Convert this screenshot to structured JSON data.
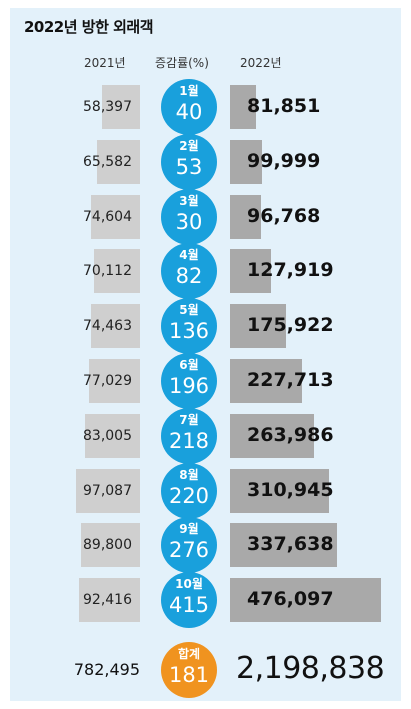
{
  "title": "2022년 방한 외래객",
  "headers": {
    "y2021": "2021년",
    "rate": "증감률(%)",
    "y2022": "2022년"
  },
  "chart_data": {
    "type": "table",
    "title": "2022년 방한 외래객",
    "columns": [
      "2021년",
      "증감률(%)",
      "2022년"
    ],
    "rows": [
      {
        "month": "1월",
        "v2021": "58,397",
        "rate": "40",
        "v2022": "81,851",
        "n2021": 58397,
        "n2022": 81851
      },
      {
        "month": "2월",
        "v2021": "65,582",
        "rate": "53",
        "v2022": "99,999",
        "n2021": 65582,
        "n2022": 99999
      },
      {
        "month": "3월",
        "v2021": "74,604",
        "rate": "30",
        "v2022": "96,768",
        "n2021": 74604,
        "n2022": 96768
      },
      {
        "month": "4월",
        "v2021": "70,112",
        "rate": "82",
        "v2022": "127,919",
        "n2021": 70112,
        "n2022": 127919
      },
      {
        "month": "5월",
        "v2021": "74,463",
        "rate": "136",
        "v2022": "175,922",
        "n2021": 74463,
        "n2022": 175922
      },
      {
        "month": "6월",
        "v2021": "77,029",
        "rate": "196",
        "v2022": "227,713",
        "n2021": 77029,
        "n2022": 227713
      },
      {
        "month": "7월",
        "v2021": "83,005",
        "rate": "218",
        "v2022": "263,986",
        "n2021": 83005,
        "n2022": 263986
      },
      {
        "month": "8월",
        "v2021": "97,087",
        "rate": "220",
        "v2022": "310,945",
        "n2021": 97087,
        "n2022": 310945
      },
      {
        "month": "9월",
        "v2021": "89,800",
        "rate": "276",
        "v2022": "337,638",
        "n2021": 89800,
        "n2022": 337638
      },
      {
        "month": "10월",
        "v2021": "92,416",
        "rate": "415",
        "v2022": "476,097",
        "n2021": 92416,
        "n2022": 476097
      }
    ],
    "total": {
      "label": "합계",
      "v2021": "782,495",
      "rate": "181",
      "v2022": "2,198,838"
    }
  },
  "colors": {
    "panel": "#e3f1fa",
    "circle": "#19a0dc",
    "total_circle": "#f0931f",
    "bar2021": "#cfcfcf",
    "bar2022": "#a9a9a9"
  }
}
